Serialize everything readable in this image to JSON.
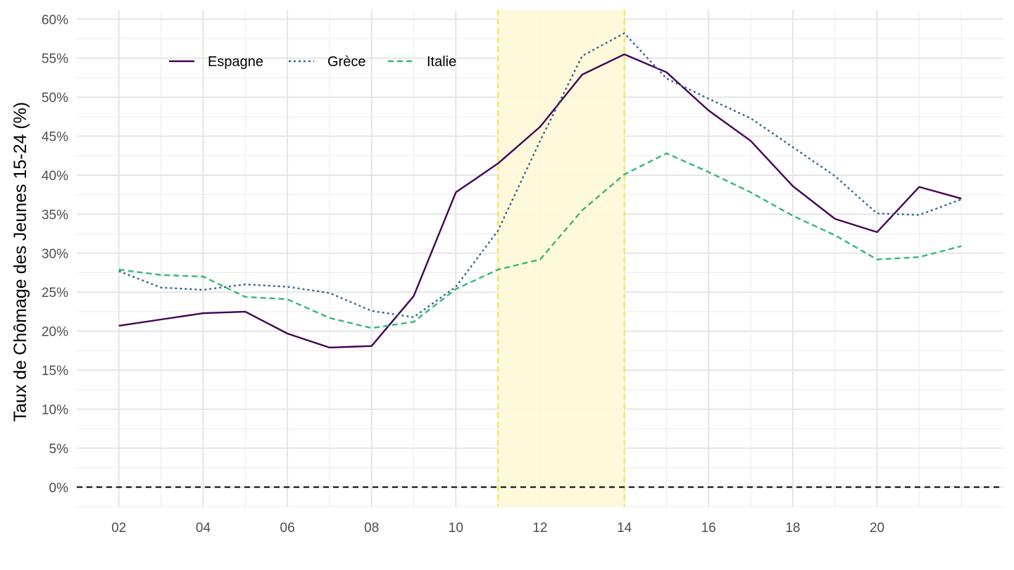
{
  "chart_data": {
    "type": "line",
    "title": "",
    "xlabel": "",
    "ylabel": "Taux de Chômage des Jeunes 15-24 (%)",
    "x": [
      2,
      3,
      4,
      5,
      6,
      7,
      8,
      9,
      10,
      11,
      12,
      13,
      14,
      15,
      16,
      17,
      18,
      19,
      20,
      21,
      22
    ],
    "x_ticks": [
      2,
      4,
      6,
      8,
      10,
      12,
      14,
      16,
      18,
      20
    ],
    "x_tick_labels": [
      "02",
      "04",
      "06",
      "08",
      "10",
      "12",
      "14",
      "16",
      "18",
      "20"
    ],
    "xlim": [
      1,
      23
    ],
    "ylim": [
      -2.5,
      61.2
    ],
    "y_ticks": [
      0,
      5,
      10,
      15,
      20,
      25,
      30,
      35,
      40,
      45,
      50,
      55,
      60
    ],
    "y_tick_labels": [
      "0%",
      "5%",
      "10%",
      "15%",
      "20%",
      "25%",
      "30%",
      "35%",
      "40%",
      "45%",
      "50%",
      "55%",
      "60%"
    ],
    "grid": true,
    "legend_position": "top-left",
    "series": [
      {
        "name": "Espagne",
        "color": "#440154",
        "dash": "solid",
        "values": [
          20.7,
          21.5,
          22.3,
          22.5,
          19.7,
          17.9,
          18.1,
          24.5,
          37.8,
          41.5,
          46.2,
          52.9,
          55.5,
          53.2,
          48.3,
          44.4,
          38.6,
          34.4,
          32.7,
          38.5,
          37.0
        ]
      },
      {
        "name": "Grèce",
        "color": "#31688e",
        "dash": "dotted",
        "values": [
          27.7,
          25.6,
          25.3,
          26.0,
          25.7,
          24.9,
          22.6,
          21.8,
          25.7,
          32.9,
          44.4,
          55.3,
          58.2,
          52.4,
          49.8,
          47.3,
          43.6,
          39.9,
          35.1,
          34.9,
          36.9
        ]
      },
      {
        "name": "Italie",
        "color": "#35b779",
        "dash": "dashed",
        "values": [
          27.9,
          27.2,
          27.0,
          24.4,
          24.1,
          21.7,
          20.4,
          21.2,
          25.4,
          27.9,
          29.2,
          35.5,
          40.1,
          42.8,
          40.4,
          37.8,
          34.8,
          32.3,
          29.2,
          29.5,
          30.9
        ]
      }
    ],
    "annotations": {
      "shaded_region": {
        "x_start": 11,
        "x_end": 14,
        "fill_color": "#fff8d7",
        "edge_color": "#f6e33a"
      },
      "reference_line": {
        "y": 0,
        "color": "#000000",
        "dash": "dashed"
      }
    }
  }
}
